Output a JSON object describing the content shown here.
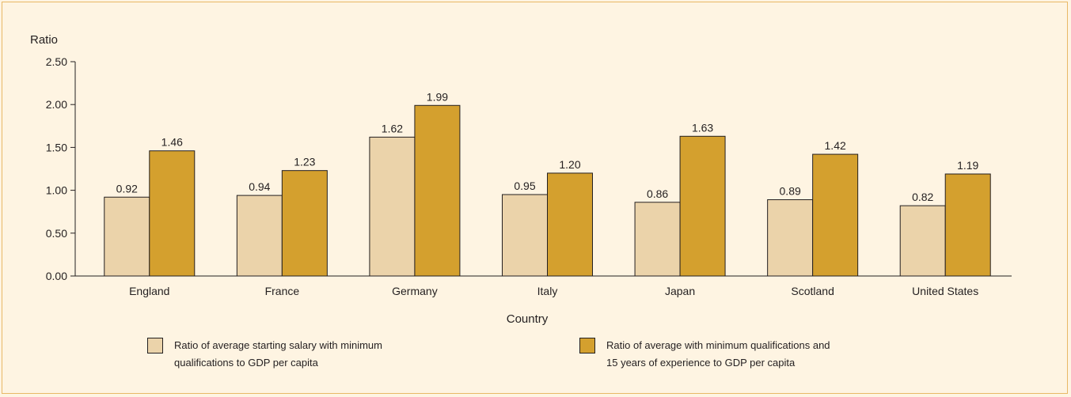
{
  "chart_data": {
    "type": "bar",
    "ylabel": "Ratio",
    "xlabel": "Country",
    "ylim": [
      0,
      2.5
    ],
    "yticks": [
      "0.00",
      "0.50",
      "1.00",
      "1.50",
      "2.00",
      "2.50"
    ],
    "categories": [
      "England",
      "France",
      "Germany",
      "Italy",
      "Japan",
      "Scotland",
      "United States"
    ],
    "series": [
      {
        "name": "Ratio of average starting salary with minimum\n qualifications to GDP  per capita",
        "color": "#ebd3aa",
        "values": [
          0.92,
          0.94,
          1.62,
          0.95,
          0.86,
          0.89,
          0.82
        ],
        "labels": [
          "0.92",
          "0.94",
          "1.62",
          "0.95",
          "0.86",
          "0.89",
          "0.82"
        ]
      },
      {
        "name": "Ratio of average with minimum qualifications and\n15 years of experience to GDP per capita",
        "color": "#d4a02e",
        "values": [
          1.46,
          1.23,
          1.99,
          1.2,
          1.63,
          1.42,
          1.19
        ],
        "labels": [
          "1.46",
          "1.23",
          "1.99",
          "1.20",
          "1.63",
          "1.42",
          "1.19"
        ]
      }
    ],
    "legend": "bottom"
  }
}
